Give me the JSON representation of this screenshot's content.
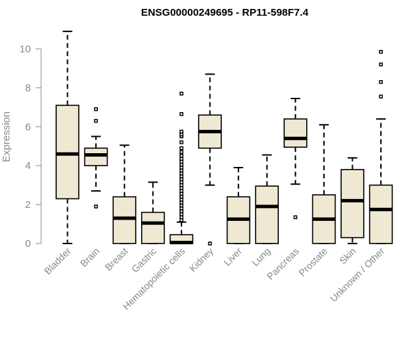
{
  "chart_data": {
    "type": "boxplot",
    "title": "ENSG00000249695 - RP11-598F7.4",
    "xlabel": "",
    "ylabel": "Expression",
    "ylim": [
      0,
      11
    ],
    "yticks": [
      0,
      2,
      4,
      6,
      8,
      10
    ],
    "box_color": "#efe9d3",
    "categories": [
      "Bladder",
      "Brain",
      "Breast",
      "Gastric",
      "Hematopoietic cells",
      "Kidney",
      "Liver",
      "Lung",
      "Pancreas",
      "Prostate",
      "Skin",
      "Unknown / Other"
    ],
    "boxes": [
      {
        "name": "Bladder",
        "whislo": 0,
        "q1": 2.3,
        "med": 4.6,
        "q3": 7.1,
        "whishi": 10.9,
        "fliers": []
      },
      {
        "name": "Brain",
        "whislo": 2.7,
        "q1": 4.0,
        "med": 4.55,
        "q3": 4.9,
        "whishi": 5.5,
        "fliers": [
          1.9,
          6.3,
          6.9
        ]
      },
      {
        "name": "Breast",
        "whislo": 0,
        "q1": 0,
        "med": 1.3,
        "q3": 2.4,
        "whishi": 5.05,
        "fliers": []
      },
      {
        "name": "Gastric",
        "whislo": 0,
        "q1": 0,
        "med": 1.05,
        "q3": 1.6,
        "whishi": 3.15,
        "fliers": []
      },
      {
        "name": "Hematopoietic cells",
        "whislo": 0,
        "q1": 0,
        "med": 0.05,
        "q3": 0.45,
        "whishi": 1.1,
        "fliers": [
          1.2,
          1.35,
          1.5,
          1.65,
          1.8,
          1.95,
          2.1,
          2.25,
          2.4,
          2.55,
          2.7,
          2.85,
          3.0,
          3.15,
          3.3,
          3.45,
          3.6,
          3.75,
          3.9,
          4.05,
          4.2,
          4.35,
          4.5,
          4.7,
          4.9,
          5.2,
          5.5,
          5.6,
          5.75,
          6.65,
          7.7
        ]
      },
      {
        "name": "Kidney",
        "whislo": 3.0,
        "q1": 4.9,
        "med": 5.75,
        "q3": 6.6,
        "whishi": 8.7,
        "fliers": [
          0
        ]
      },
      {
        "name": "Liver",
        "whislo": 0,
        "q1": 0,
        "med": 1.25,
        "q3": 2.4,
        "whishi": 3.9,
        "fliers": []
      },
      {
        "name": "Lung",
        "whislo": 0,
        "q1": 0,
        "med": 1.9,
        "q3": 2.95,
        "whishi": 4.55,
        "fliers": []
      },
      {
        "name": "Pancreas",
        "whislo": 3.05,
        "q1": 4.95,
        "med": 5.4,
        "q3": 6.4,
        "whishi": 7.45,
        "fliers": [
          1.35
        ]
      },
      {
        "name": "Prostate",
        "whislo": 0,
        "q1": 0,
        "med": 1.25,
        "q3": 2.5,
        "whishi": 6.1,
        "fliers": []
      },
      {
        "name": "Skin",
        "whislo": 0,
        "q1": 0.3,
        "med": 2.2,
        "q3": 3.8,
        "whishi": 4.4,
        "fliers": []
      },
      {
        "name": "Unknown / Other",
        "whislo": 0,
        "q1": 0,
        "med": 1.75,
        "q3": 3.0,
        "whishi": 6.4,
        "fliers": [
          7.55,
          8.3,
          9.2,
          9.85
        ]
      }
    ]
  }
}
